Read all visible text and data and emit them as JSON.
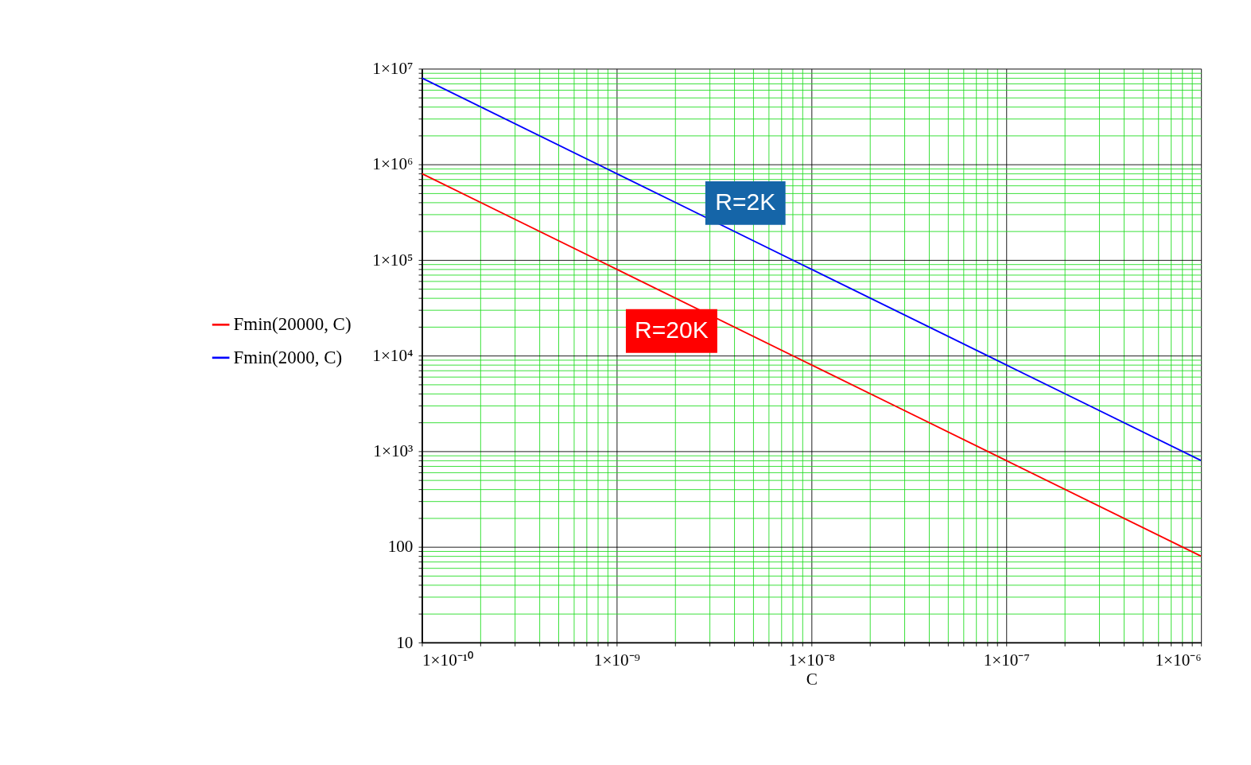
{
  "chart_data": {
    "type": "line",
    "xlabel": "C",
    "log": "xy",
    "grid": true,
    "legend": "left",
    "marker": "none",
    "line_style": "solid",
    "x": [
      1e-10,
      1e-09,
      1e-08,
      1e-07,
      1e-06
    ],
    "series": [
      {
        "name": "Fmin(20000, C)",
        "color": "#ff0000",
        "values": [
          800000,
          80000,
          8000,
          800,
          80
        ]
      },
      {
        "name": "Fmin(2000, C)",
        "color": "#0000ff",
        "values": [
          8000000,
          800000,
          80000,
          8000,
          800
        ]
      }
    ],
    "annotations": [
      "R=2K",
      "R=20K"
    ],
    "xlim": [
      1e-10,
      1e-06
    ],
    "ylim": [
      10,
      10000000
    ],
    "xticks": [
      {
        "value": 1e-10,
        "label": "1×10⁻¹⁰"
      },
      {
        "value": 2e-10,
        "label": null
      },
      {
        "value": 3e-10,
        "label": null
      },
      {
        "value": 4e-10,
        "label": null
      },
      {
        "value": 5e-10,
        "label": null
      },
      {
        "value": 6e-10,
        "label": null
      },
      {
        "value": 7e-10,
        "label": null
      },
      {
        "value": 8e-10,
        "label": null
      },
      {
        "value": 9e-10,
        "label": null
      },
      {
        "value": 1e-09,
        "label": "1×10⁻⁹"
      },
      {
        "value": 2e-09,
        "label": null
      },
      {
        "value": 3e-09,
        "label": null
      },
      {
        "value": 4e-09,
        "label": null
      },
      {
        "value": 5e-09,
        "label": null
      },
      {
        "value": 6e-09,
        "label": null
      },
      {
        "value": 7e-09,
        "label": null
      },
      {
        "value": 8e-09,
        "label": null
      },
      {
        "value": 9e-09,
        "label": null
      },
      {
        "value": 1e-08,
        "label": "1×10⁻⁸"
      },
      {
        "value": 2e-08,
        "label": null
      },
      {
        "value": 3e-08,
        "label": null
      },
      {
        "value": 4e-08,
        "label": null
      },
      {
        "value": 5e-08,
        "label": null
      },
      {
        "value": 6e-08,
        "label": null
      },
      {
        "value": 7e-08,
        "label": null
      },
      {
        "value": 8e-08,
        "label": null
      },
      {
        "value": 9e-08,
        "label": null
      },
      {
        "value": 1e-07,
        "label": "1×10⁻⁷"
      },
      {
        "value": 2e-07,
        "label": null
      },
      {
        "value": 3e-07,
        "label": null
      },
      {
        "value": 4e-07,
        "label": null
      },
      {
        "value": 5e-07,
        "label": null
      },
      {
        "value": 6e-07,
        "label": null
      },
      {
        "value": 7e-07,
        "label": null
      },
      {
        "value": 8e-07,
        "label": null
      },
      {
        "value": 9e-07,
        "label": null
      },
      {
        "value": 1e-06,
        "label": "1×10⁻⁶"
      }
    ],
    "yticks": [
      10,
      {
        "value": 20,
        "label": null
      },
      {
        "value": 30,
        "label": null
      },
      {
        "value": 40,
        "label": null
      },
      {
        "value": 50,
        "label": null
      },
      {
        "value": 60,
        "label": null
      },
      {
        "value": 70,
        "label": null
      },
      {
        "value": 80,
        "label": null
      },
      {
        "value": 90,
        "label": null
      },
      100,
      {
        "value": 200,
        "label": null
      },
      {
        "value": 300,
        "label": null
      },
      {
        "value": 400,
        "label": null
      },
      {
        "value": 500,
        "label": null
      },
      {
        "value": 600,
        "label": null
      },
      {
        "value": 700,
        "label": null
      },
      {
        "value": 800,
        "label": null
      },
      {
        "value": 900,
        "label": null
      },
      {
        "value": 1000,
        "label": "1×10³"
      },
      {
        "value": 2000,
        "label": null
      },
      {
        "value": 3000,
        "label": null
      },
      {
        "value": 4000,
        "label": null
      },
      {
        "value": 5000,
        "label": null
      },
      {
        "value": 6000,
        "label": null
      },
      {
        "value": 7000,
        "label": null
      },
      {
        "value": 8000,
        "label": null
      },
      {
        "value": 9000,
        "label": null
      },
      {
        "value": 10000,
        "label": "1×10⁴"
      },
      {
        "value": 20000,
        "label": null
      },
      {
        "value": 30000,
        "label": null
      },
      {
        "value": 40000,
        "label": null
      },
      {
        "value": 50000,
        "label": null
      },
      {
        "value": 60000,
        "label": null
      },
      {
        "value": 70000,
        "label": null
      },
      {
        "value": 80000,
        "label": null
      },
      {
        "value": 90000,
        "label": null
      },
      {
        "value": 100000,
        "label": "1×10⁵"
      },
      {
        "value": 200000,
        "label": null
      },
      {
        "value": 300000,
        "label": null
      },
      {
        "value": 400000,
        "label": null
      },
      {
        "value": 500000,
        "label": null
      },
      {
        "value": 600000,
        "label": null
      },
      {
        "value": 700000,
        "label": null
      },
      {
        "value": 800000,
        "label": null
      },
      {
        "value": 900000,
        "label": null
      },
      {
        "value": 1000000,
        "label": "1×10⁶"
      },
      {
        "value": 2000000,
        "label": null
      },
      {
        "value": 3000000,
        "label": null
      },
      {
        "value": 4000000,
        "label": null
      },
      {
        "value": 5000000,
        "label": null
      },
      {
        "value": 6000000,
        "label": null
      },
      {
        "value": 7000000,
        "label": null
      },
      {
        "value": 8000000,
        "label": null
      },
      {
        "value": 9000000,
        "label": null
      },
      {
        "value": 10000000,
        "label": "1×10⁷"
      }
    ]
  }
}
